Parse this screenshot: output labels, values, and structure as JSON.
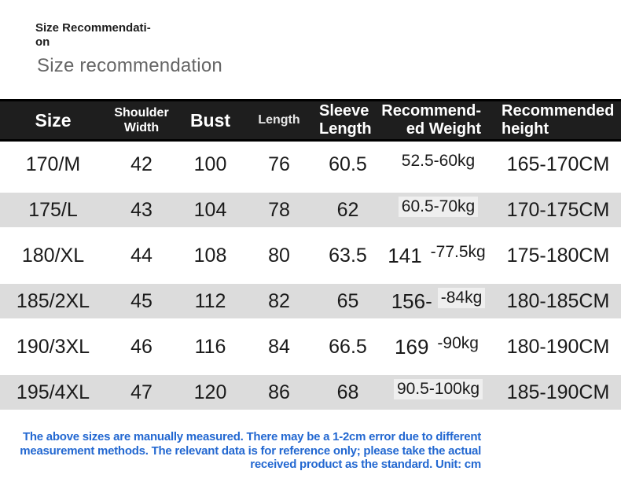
{
  "page": {
    "mini_title_lines": [
      "Size Recommendati-",
      "on"
    ],
    "subtitle": "Size recommendation"
  },
  "table": {
    "columns": [
      {
        "key": "size",
        "label": "Size"
      },
      {
        "key": "shoulder",
        "label": "Shoulder\nWidth"
      },
      {
        "key": "bust",
        "label": "Bust"
      },
      {
        "key": "length",
        "label": "Length"
      },
      {
        "key": "sleeve",
        "label": "Sleeve\nLength"
      },
      {
        "key": "weight",
        "label": "Recommend-\ned Weight"
      },
      {
        "key": "height",
        "label": "Recommended\nheight"
      }
    ],
    "rows": [
      {
        "size": "170/M",
        "shoulder": "42",
        "bust": "100",
        "length": "76",
        "sleeve": "60.5",
        "weight_prefix": "",
        "weight_overlay": "52.5-60kg",
        "height": "165-170CM"
      },
      {
        "size": "175/L",
        "shoulder": "43",
        "bust": "104",
        "length": "78",
        "sleeve": "62",
        "weight_prefix": "",
        "weight_overlay": "60.5-70kg",
        "height": "170-175CM"
      },
      {
        "size": "180/XL",
        "shoulder": "44",
        "bust": "108",
        "length": "80",
        "sleeve": "63.5",
        "weight_prefix": "141",
        "weight_overlay": "-77.5kg",
        "height": "175-180CM"
      },
      {
        "size": "185/2XL",
        "shoulder": "45",
        "bust": "112",
        "length": "82",
        "sleeve": "65",
        "weight_prefix": "156-",
        "weight_overlay": "-84kg",
        "height": "180-185CM"
      },
      {
        "size": "190/3XL",
        "shoulder": "46",
        "bust": "116",
        "length": "84",
        "sleeve": "66.5",
        "weight_prefix": "169",
        "weight_overlay": "-90kg",
        "height": "180-190CM"
      },
      {
        "size": "195/4XL",
        "shoulder": "47",
        "bust": "120",
        "length": "86",
        "sleeve": "68",
        "weight_prefix": "",
        "weight_overlay": "90.5-100kg",
        "height": "185-190CM"
      }
    ]
  },
  "disclaimer": {
    "lines": [
      "The above sizes are manually measured. There may be a 1-2cm error due to different",
      "measurement methods. The relevant data is for reference only; please take the actual",
      "received product as the standard. Unit: cm"
    ]
  },
  "colors": {
    "header_bg": "#1e1e1e",
    "header_text": "#ffffff",
    "row_stripe": "#dcdcdc",
    "body_text": "#1a1a1a",
    "subtitle_text": "#666666",
    "disclaimer_text": "#2368d1"
  }
}
